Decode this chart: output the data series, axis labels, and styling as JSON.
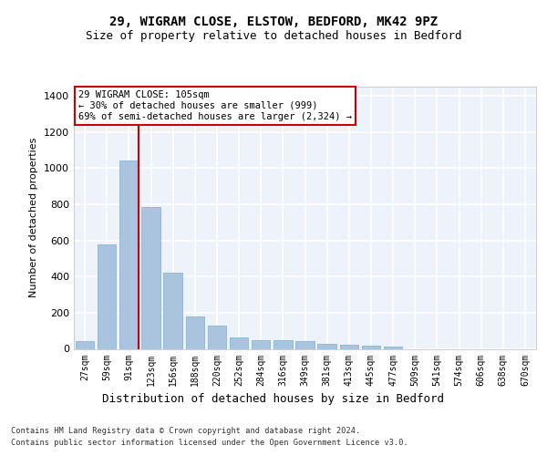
{
  "title1": "29, WIGRAM CLOSE, ELSTOW, BEDFORD, MK42 9PZ",
  "title2": "Size of property relative to detached houses in Bedford",
  "xlabel": "Distribution of detached houses by size in Bedford",
  "ylabel": "Number of detached properties",
  "categories": [
    "27sqm",
    "59sqm",
    "91sqm",
    "123sqm",
    "156sqm",
    "188sqm",
    "220sqm",
    "252sqm",
    "284sqm",
    "316sqm",
    "349sqm",
    "381sqm",
    "413sqm",
    "445sqm",
    "477sqm",
    "509sqm",
    "541sqm",
    "574sqm",
    "606sqm",
    "638sqm",
    "670sqm"
  ],
  "values": [
    45,
    575,
    1040,
    785,
    420,
    180,
    130,
    65,
    48,
    48,
    42,
    28,
    25,
    18,
    12,
    0,
    0,
    0,
    0,
    0,
    0
  ],
  "bar_color": "#aac4e0",
  "bar_edge_color": "#7aafd4",
  "background_color": "#eef2fa",
  "grid_color": "#ffffff",
  "ylim": [
    0,
    1450
  ],
  "yticks": [
    0,
    200,
    400,
    600,
    800,
    1000,
    1200,
    1400
  ],
  "annotation_text": "29 WIGRAM CLOSE: 105sqm\n← 30% of detached houses are smaller (999)\n69% of semi-detached houses are larger (2,324) →",
  "redline_color": "#cc0000",
  "footer1": "Contains HM Land Registry data © Crown copyright and database right 2024.",
  "footer2": "Contains public sector information licensed under the Open Government Licence v3.0."
}
